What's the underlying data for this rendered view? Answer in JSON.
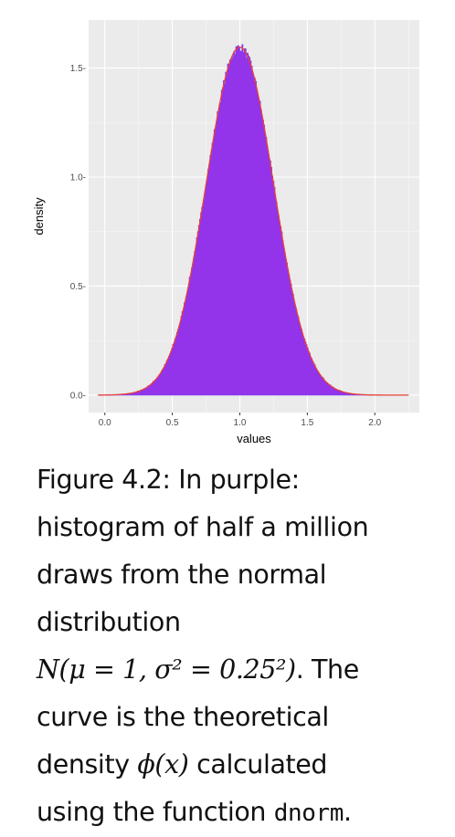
{
  "chart_data": {
    "type": "histogram",
    "title": "",
    "xlabel": "values",
    "ylabel": "density",
    "xlim": [
      -0.12,
      2.33
    ],
    "ylim": [
      -0.08,
      1.72
    ],
    "x_ticks": [
      0.0,
      0.5,
      1.0,
      1.5,
      2.0
    ],
    "x_tick_labels": [
      "0.0",
      "0.5",
      "1.0",
      "1.5",
      "2.0"
    ],
    "y_ticks": [
      0.0,
      0.5,
      1.0,
      1.5
    ],
    "y_tick_labels": [
      "0.0-",
      "0.5-",
      "1.0-",
      "1.5-"
    ],
    "grid": true,
    "panel_background": "#ebebeb",
    "histogram": {
      "distribution": "normal",
      "mean": 1,
      "sd": 0.25,
      "n_draws": 500000,
      "range": [
        -0.05,
        2.25
      ],
      "color": "#9333ea",
      "outline_color": "#6a3cf0"
    },
    "curve": {
      "name": "theoretical density",
      "function": "dnorm",
      "mean": 1,
      "sd": 0.25,
      "peak_density": 1.596,
      "range": [
        -0.05,
        2.25
      ],
      "color": "#e8403a"
    }
  },
  "caption": {
    "line1": "Figure 4.2: In purple:",
    "line2": "histogram of half a million",
    "line3": "draws from the normal",
    "line4": "distribution",
    "math_dist": "N(μ = 1, σ² = 0.25²)",
    "line5_tail": ". The",
    "line6": "curve is the theoretical",
    "line7_head": "density ",
    "math_phi": "ϕ(x)",
    "line7_tail": " calculated",
    "line8_head": "using the function ",
    "code": "dnorm",
    "line8_tail": "."
  }
}
